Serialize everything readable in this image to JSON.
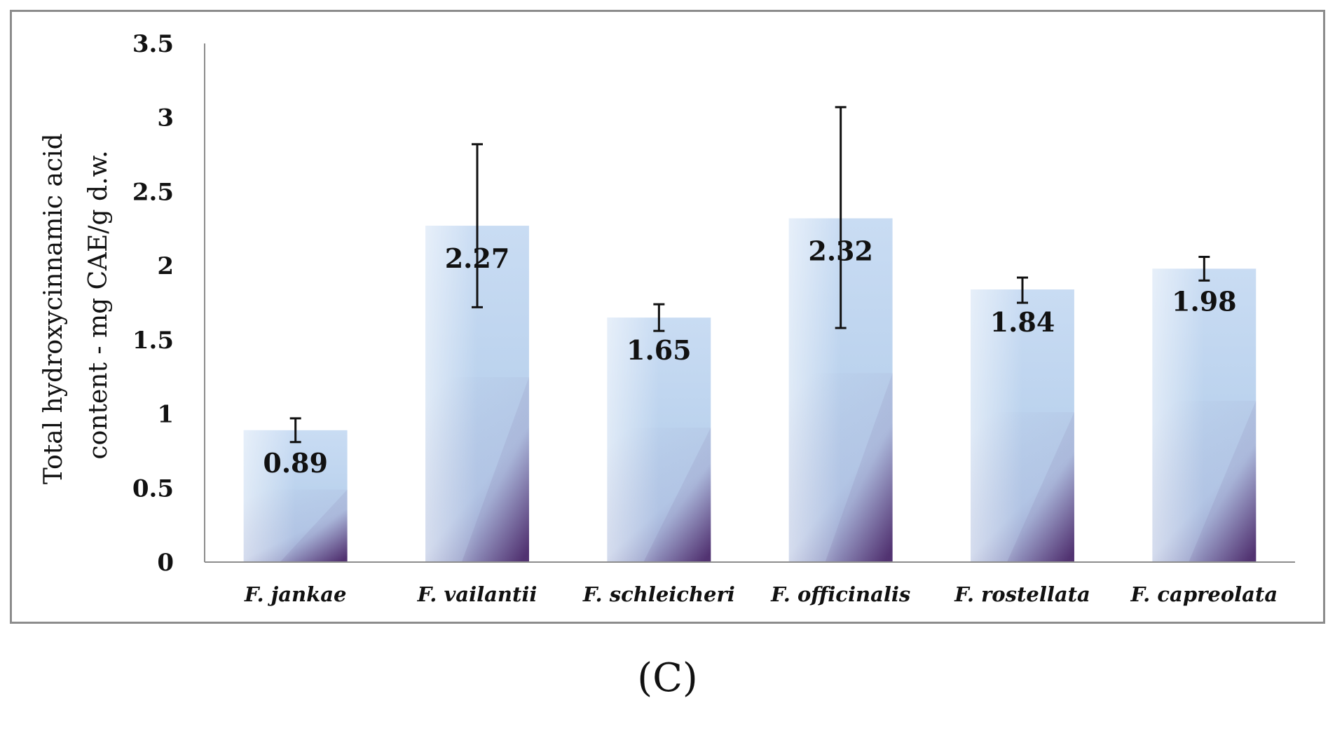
{
  "chart_data": {
    "type": "bar",
    "title": "",
    "xlabel": "",
    "ylabel_lines": [
      "Total hydroxycinnamic acid",
      "content - mg CAE/g d.w."
    ],
    "categories": [
      "F. jankae",
      "F. vailantii",
      "F. schleicheri",
      "F. officinalis",
      "F. rostellata",
      "F. capreolata"
    ],
    "values": [
      0.89,
      2.27,
      1.65,
      2.32,
      1.84,
      1.98
    ],
    "value_labels": [
      "0.89",
      "2.27",
      "1.65",
      "2.32",
      "1.84",
      "1.98"
    ],
    "error_low": [
      0.81,
      1.72,
      1.56,
      1.58,
      1.75,
      1.9
    ],
    "error_high": [
      0.97,
      2.82,
      1.74,
      3.07,
      1.92,
      2.06
    ],
    "ylim": [
      0,
      3.5
    ],
    "yticks": [
      0,
      0.5,
      1,
      1.5,
      2,
      2.5,
      3,
      3.5
    ],
    "ytick_labels": [
      "0",
      "0.5",
      "1",
      "1.5",
      "2",
      "2.5",
      "3",
      "3.5"
    ],
    "grid": false,
    "legend": "none",
    "colors": {
      "bar_light": "#e3ecf8",
      "bar_mid": "#bcd3ee",
      "bar_dark": "#5a3d78",
      "axis": "#8c8c8c",
      "error": "#111111"
    }
  },
  "panel_label": "(C)"
}
